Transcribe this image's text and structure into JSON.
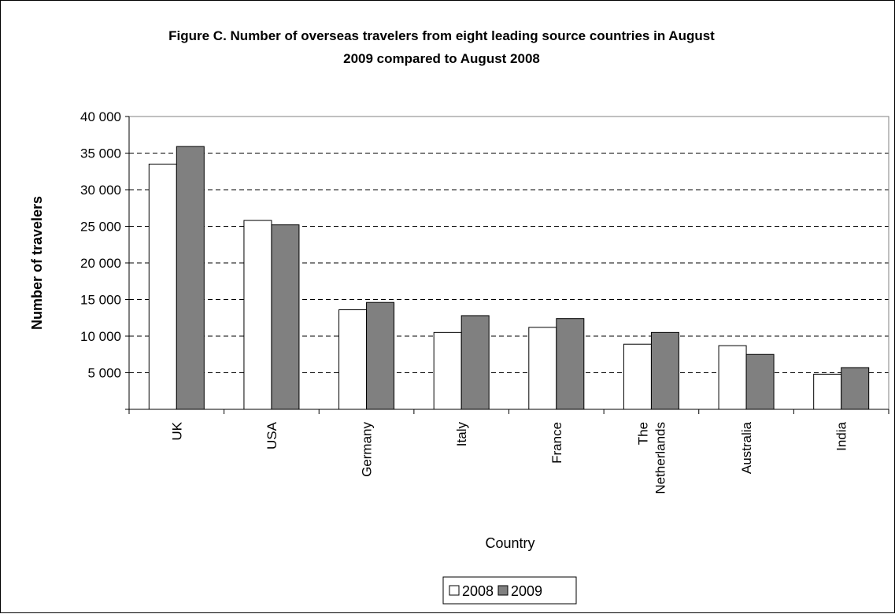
{
  "chart_data": {
    "type": "bar",
    "title_lines": [
      "Figure C. Number of overseas travelers from eight leading source countries in August",
      "2009 compared to August 2008"
    ],
    "xlabel": "Country",
    "ylabel": "Number of travelers",
    "ylim": [
      0,
      40000
    ],
    "y_ticks": [
      5000,
      10000,
      15000,
      20000,
      25000,
      30000,
      35000,
      40000
    ],
    "y_tick_labels": [
      "5 000",
      "10 000",
      "15 000",
      "20 000",
      "25 000",
      "30 000",
      "35 000",
      "40 000"
    ],
    "categories": [
      "UK",
      "USA",
      "Germany",
      "Italy",
      "France",
      "The Netherlands",
      "Australia",
      "India"
    ],
    "category_label_lines": [
      [
        "UK"
      ],
      [
        "USA"
      ],
      [
        "Germany"
      ],
      [
        "Italy"
      ],
      [
        "France"
      ],
      [
        "The",
        "Netherlands"
      ],
      [
        "Australia"
      ],
      [
        "India"
      ]
    ],
    "series": [
      {
        "name": "2008",
        "color": "#ffffff",
        "values": [
          33500,
          25800,
          13600,
          10500,
          11200,
          8900,
          8700,
          4800
        ]
      },
      {
        "name": "2009",
        "color": "#808080",
        "values": [
          35900,
          25200,
          14600,
          12800,
          12400,
          10500,
          7500,
          5700
        ]
      }
    ],
    "grid": "horizontal dashed",
    "legend_position": "bottom-center"
  }
}
